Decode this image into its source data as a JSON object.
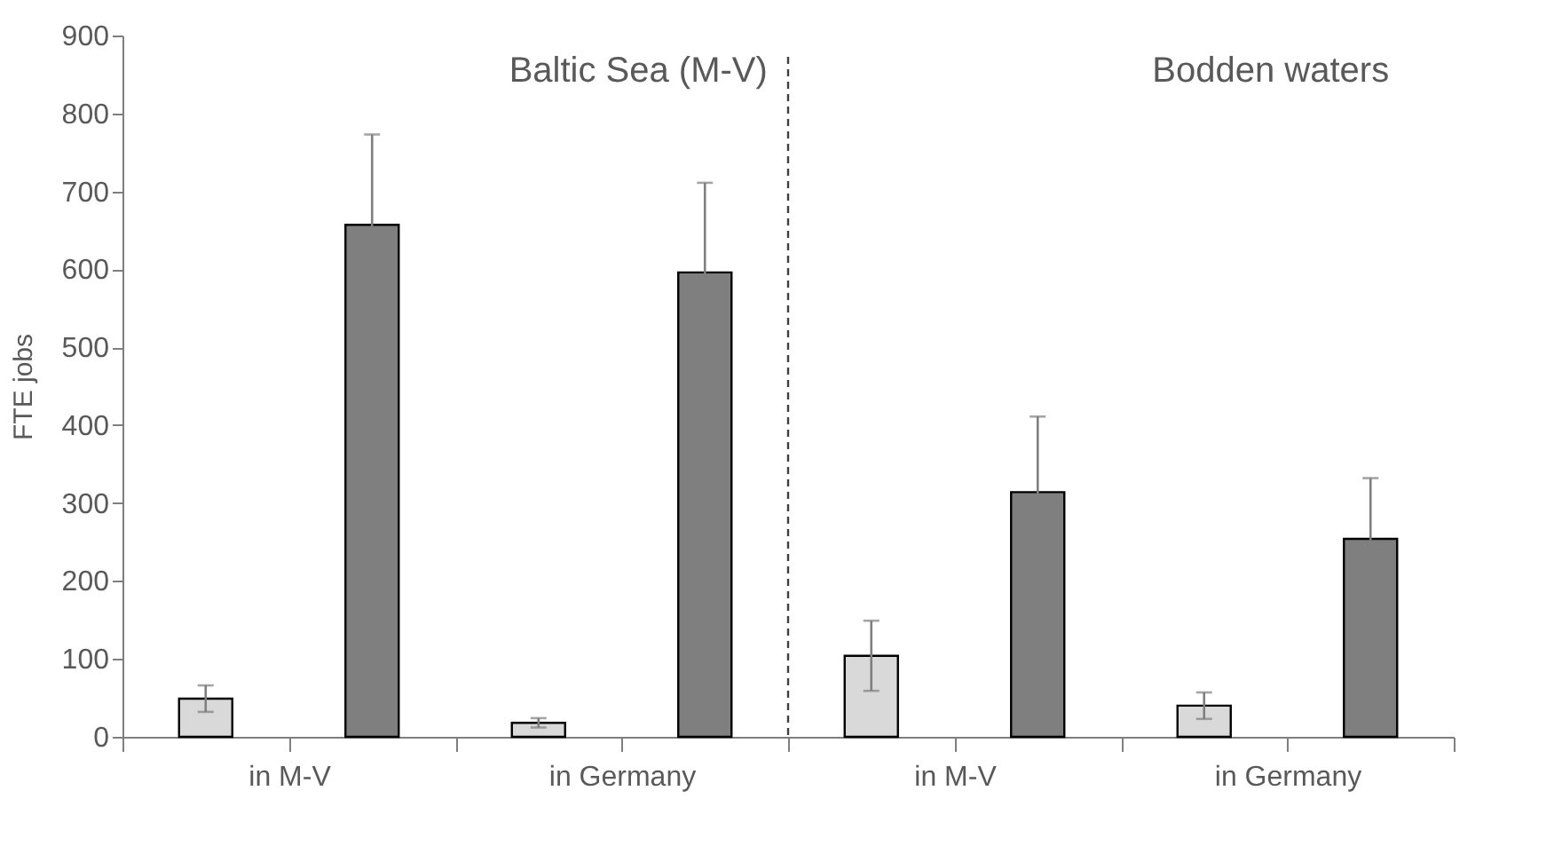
{
  "chart_data": {
    "type": "bar",
    "ylabel": "FTE jobs",
    "categories": [
      "in M-V",
      "in Germany",
      "in M-V",
      "in Germany"
    ],
    "series": [
      {
        "color": "#d9d9d9",
        "values": [
          49,
          18,
          104,
          40
        ],
        "errors": [
          17,
          6,
          45,
          17
        ]
      },
      {
        "color": "#7f7f7f",
        "values": [
          657,
          596,
          314,
          254
        ],
        "errors": [
          116,
          115,
          97,
          78
        ]
      }
    ],
    "ylim": [
      0,
      900
    ],
    "yticks": [
      0,
      100,
      200,
      300,
      400,
      500,
      600,
      700,
      800,
      900
    ],
    "annotations": [
      "Baltic Sea (M-V)",
      "Bodden waters"
    ],
    "grid": false
  }
}
